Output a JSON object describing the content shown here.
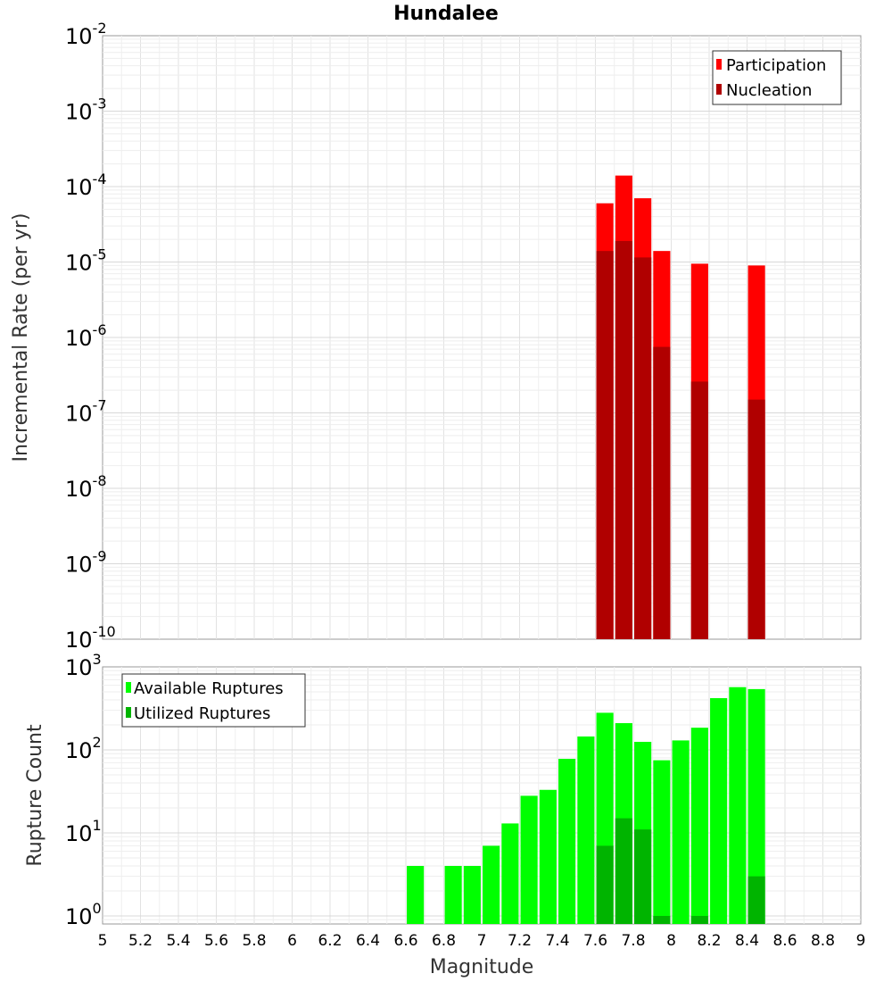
{
  "chart_data": [
    {
      "type": "bar",
      "title": "Hundalee",
      "xlabel": "",
      "ylabel": "Incremental Rate (per yr)",
      "xlim": [
        5,
        9
      ],
      "ylim": [
        1e-10,
        0.01
      ],
      "yscale": "log",
      "bar_width": 0.09,
      "legend": "top-right",
      "series": [
        {
          "name": "Participation",
          "color": "#ff0000",
          "x": [
            7.65,
            7.75,
            7.85,
            7.95,
            8.15,
            8.45
          ],
          "values": [
            6e-05,
            0.00014,
            7e-05,
            1.4e-05,
            9.5e-06,
            9e-06
          ]
        },
        {
          "name": "Nucleation",
          "color": "#b00000",
          "x": [
            7.65,
            7.75,
            7.85,
            7.95,
            8.15,
            8.45
          ],
          "values": [
            1.4e-05,
            1.9e-05,
            1.15e-05,
            7.5e-07,
            2.6e-07,
            1.5e-07
          ]
        }
      ],
      "yticks": [
        {
          "base": "10",
          "exp": "-2"
        },
        {
          "base": "10",
          "exp": "-3"
        },
        {
          "base": "10",
          "exp": "-4"
        },
        {
          "base": "10",
          "exp": "-5"
        },
        {
          "base": "10",
          "exp": "-6"
        },
        {
          "base": "10",
          "exp": "-7"
        },
        {
          "base": "10",
          "exp": "-8"
        },
        {
          "base": "10",
          "exp": "-9"
        },
        {
          "base": "10",
          "exp": "-10"
        }
      ]
    },
    {
      "type": "bar",
      "title": "",
      "xlabel": "Magnitude",
      "ylabel": "Rupture Count",
      "xlim": [
        5,
        9
      ],
      "ylim": [
        0.8,
        1000
      ],
      "yscale": "log",
      "bar_width": 0.09,
      "legend": "top-left",
      "series": [
        {
          "name": "Available Ruptures",
          "color": "#00ff00",
          "x": [
            6.65,
            6.85,
            6.95,
            7.05,
            7.15,
            7.25,
            7.35,
            7.45,
            7.55,
            7.65,
            7.75,
            7.85,
            7.95,
            8.05,
            8.15,
            8.25,
            8.35,
            8.45
          ],
          "values": [
            4,
            4,
            4,
            7,
            13,
            28,
            33,
            78,
            145,
            280,
            210,
            125,
            75,
            130,
            185,
            420,
            570,
            540
          ]
        },
        {
          "name": "Utilized Ruptures",
          "color": "#00b400",
          "x": [
            7.65,
            7.75,
            7.85,
            7.95,
            8.15,
            8.45
          ],
          "values": [
            7,
            15,
            11,
            1,
            1,
            3
          ]
        }
      ],
      "yticks": [
        {
          "base": "10",
          "exp": "3"
        },
        {
          "base": "10",
          "exp": "2"
        },
        {
          "base": "10",
          "exp": "1"
        },
        {
          "base": "10",
          "exp": "0"
        }
      ],
      "xticks": [
        "5",
        "5.2",
        "5.4",
        "5.6",
        "5.8",
        "6",
        "6.2",
        "6.4",
        "6.6",
        "6.8",
        "7",
        "7.2",
        "7.4",
        "7.6",
        "7.8",
        "8",
        "8.2",
        "8.4",
        "8.6",
        "8.8",
        "9"
      ]
    }
  ]
}
